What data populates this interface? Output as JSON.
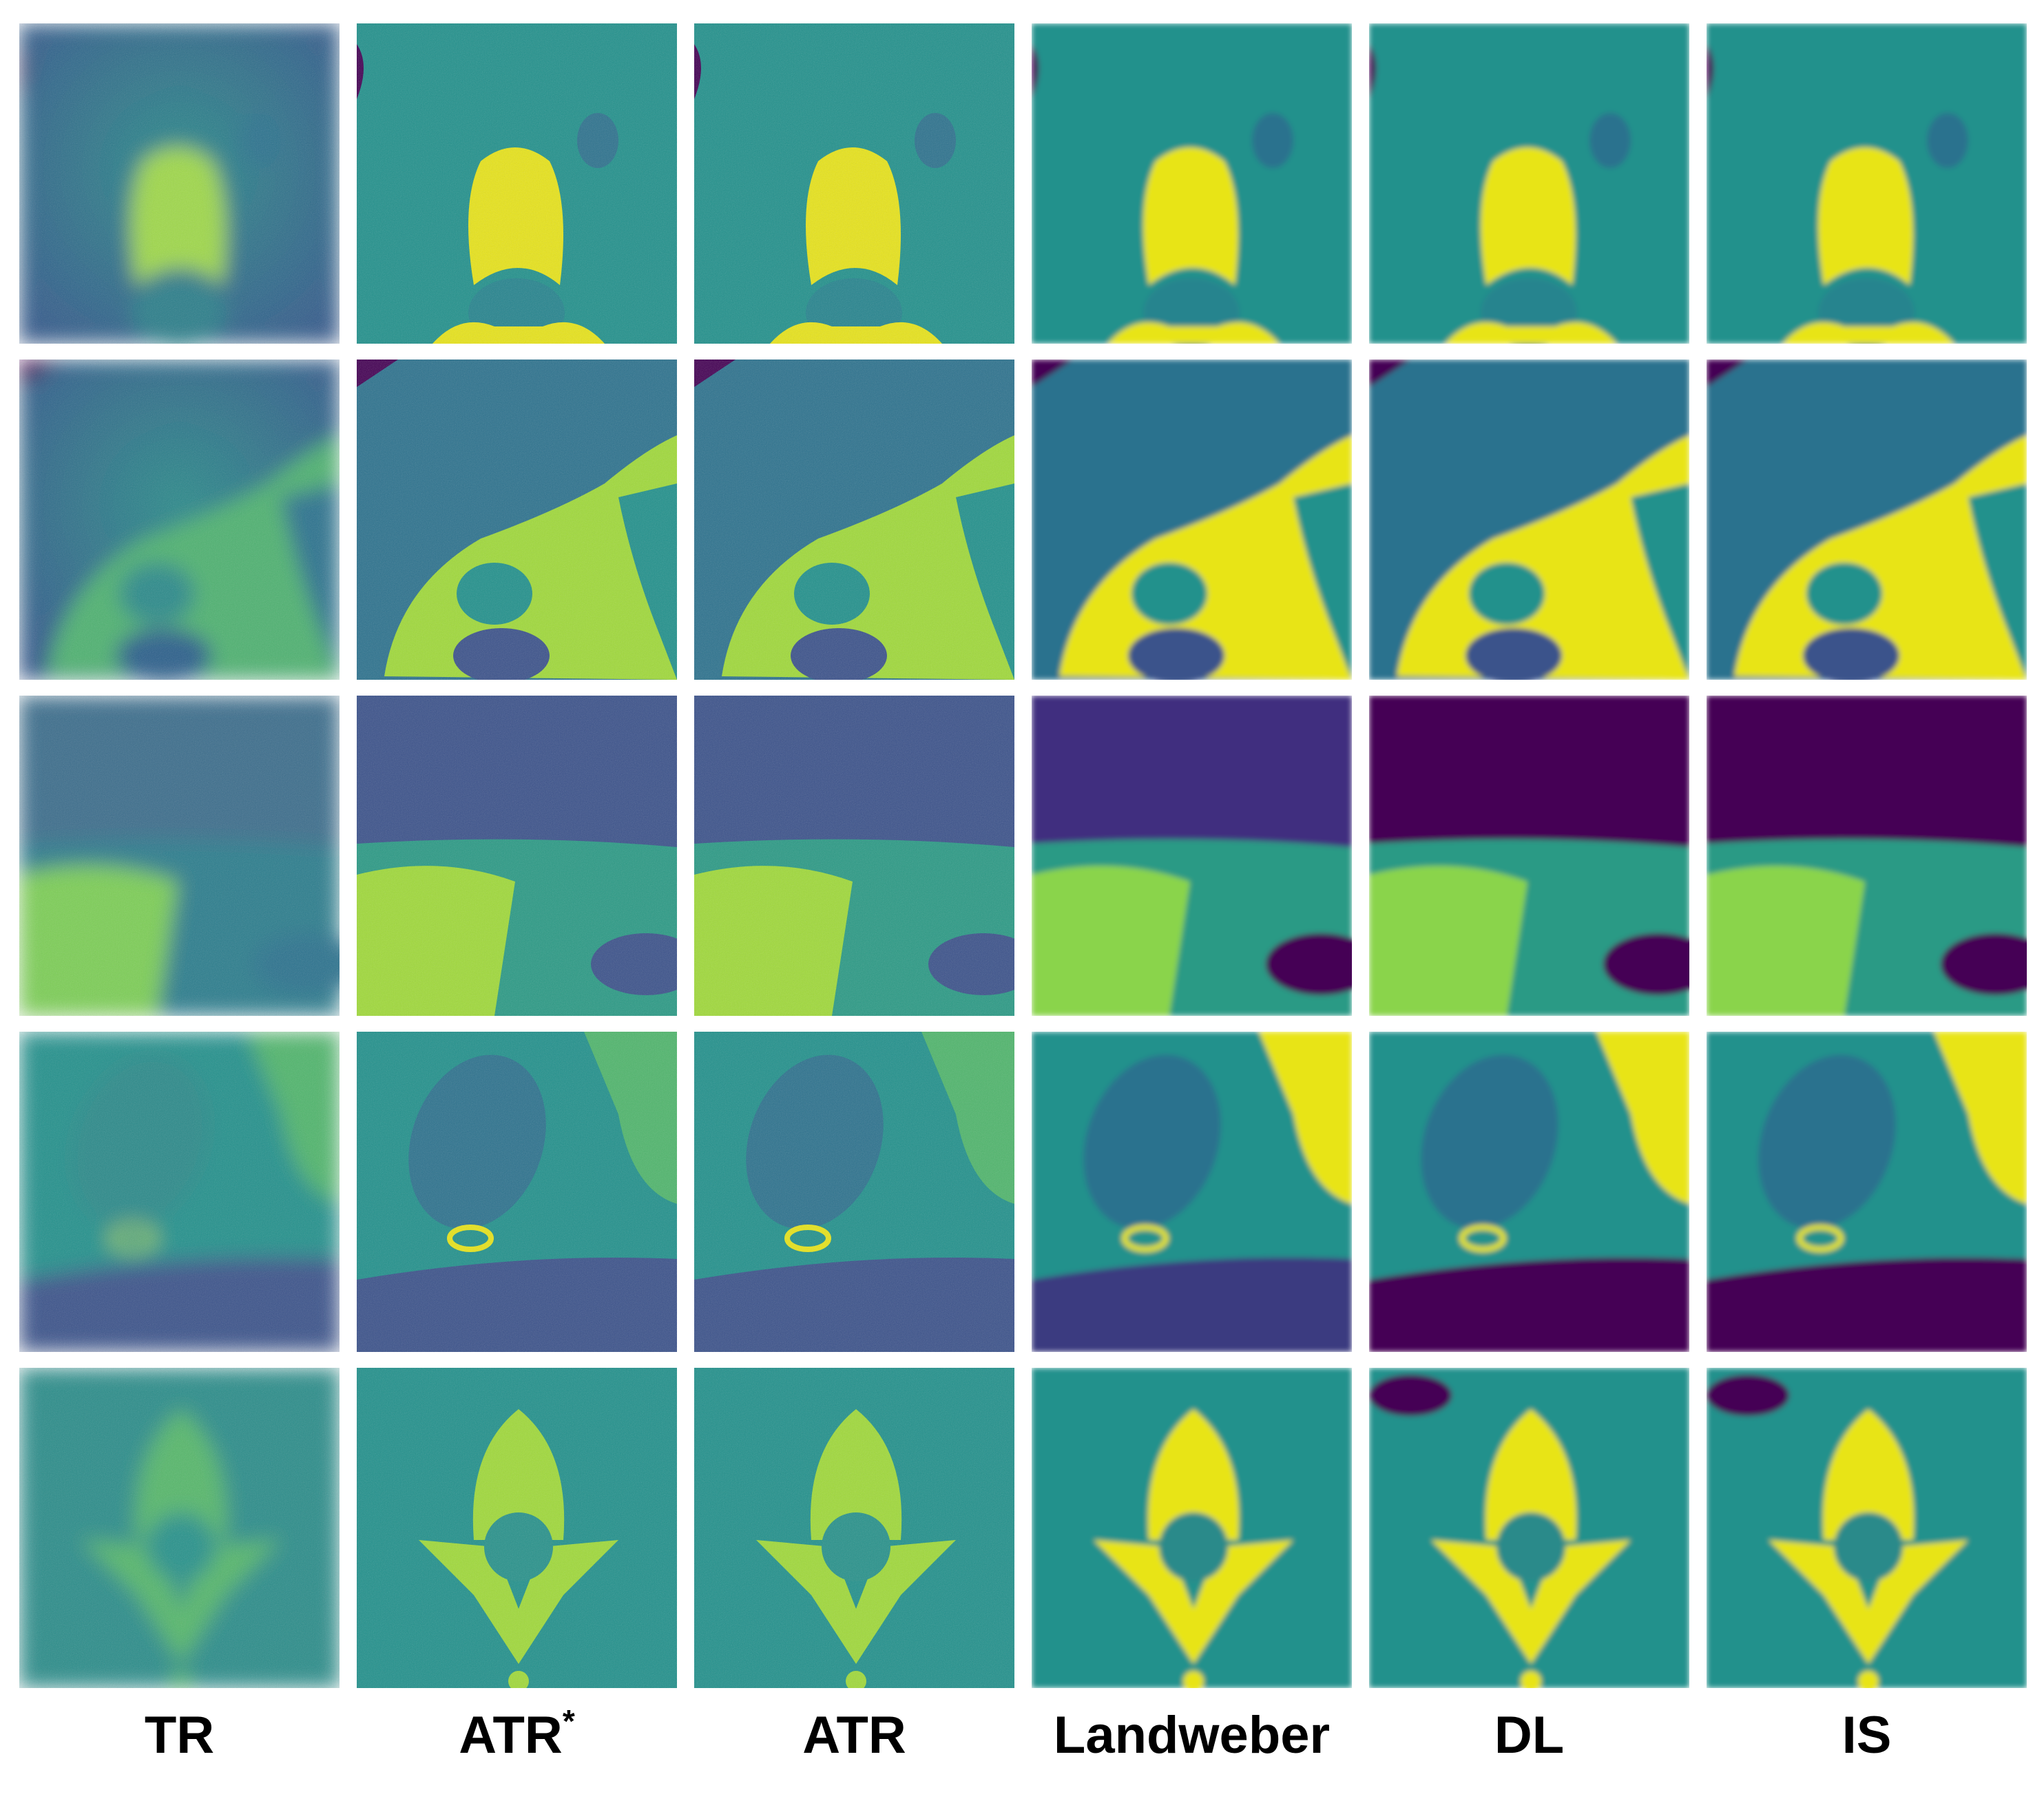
{
  "figure": {
    "columns": [
      {
        "label": "TR"
      },
      {
        "label": "ATR",
        "sup": "*"
      },
      {
        "label": "ATR"
      },
      {
        "label": "Landweber"
      },
      {
        "label": "DL"
      },
      {
        "label": "IS"
      }
    ]
  }
}
